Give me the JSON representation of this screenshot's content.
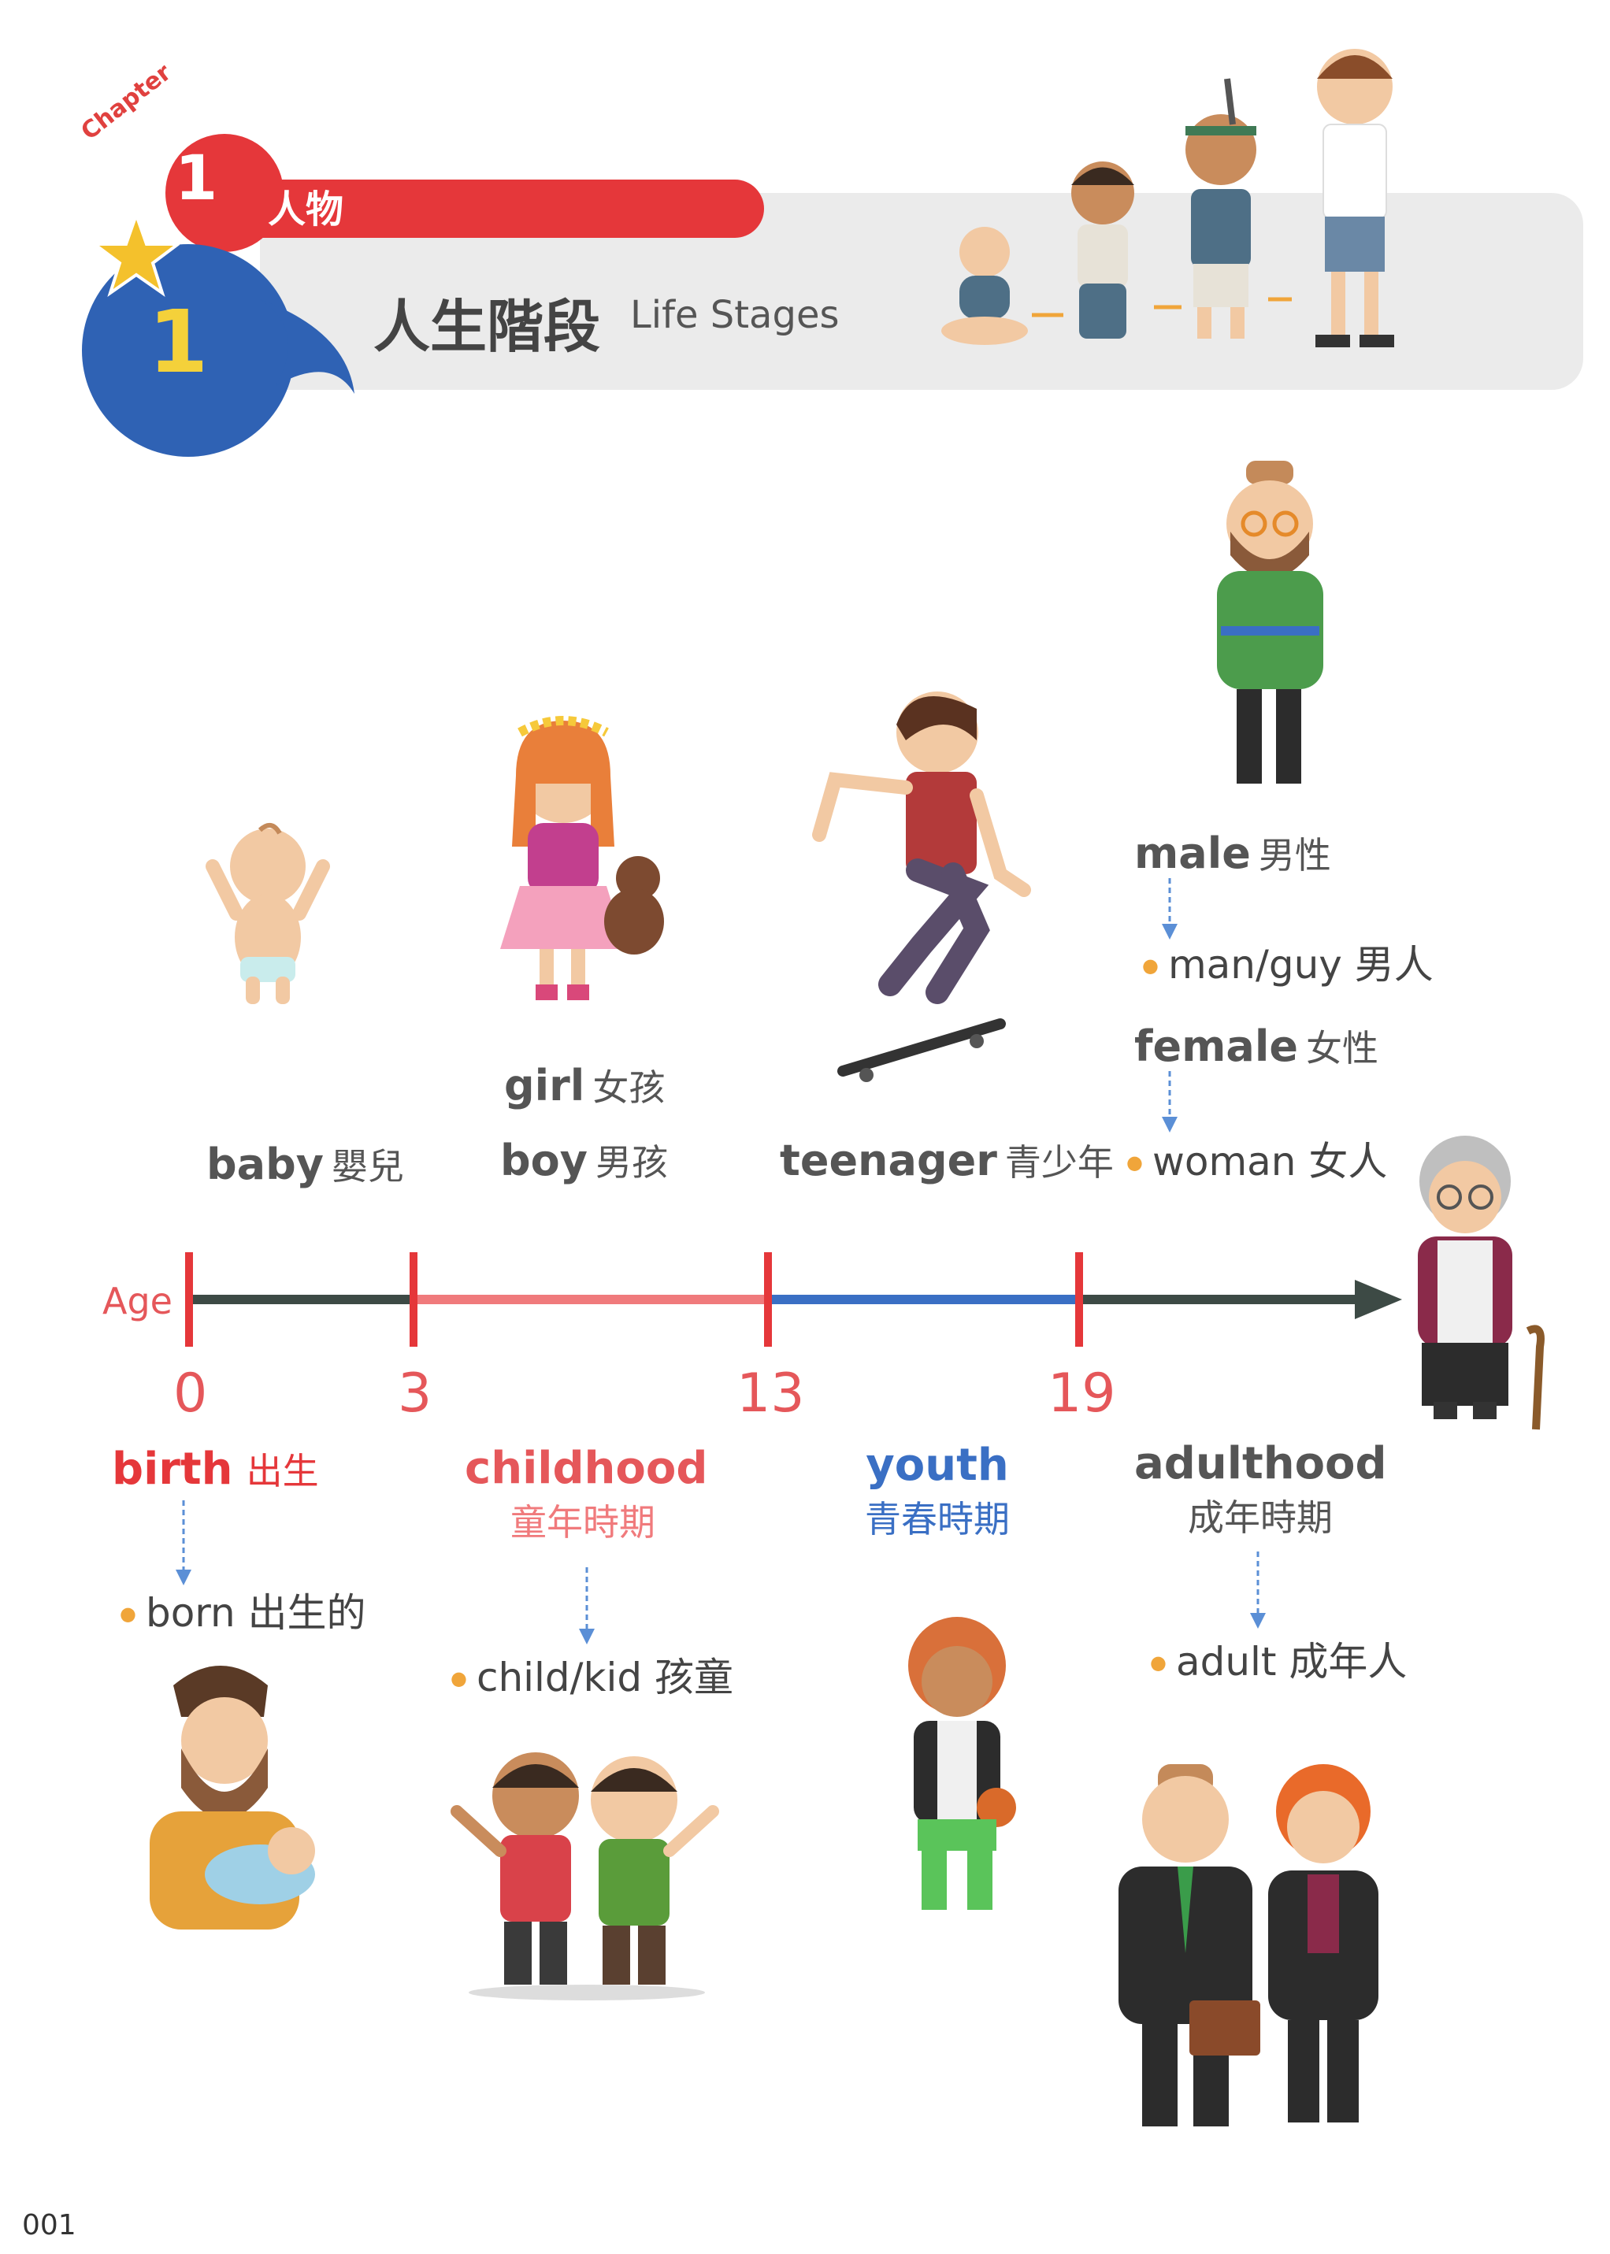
{
  "header": {
    "chapter_word": "Chapter",
    "chapter_number": "1",
    "chapter_title": "人物",
    "section_number": "1",
    "section_title_zh": "人生階段",
    "section_title_en": "Life Stages"
  },
  "timeline": {
    "axis_label": "Age",
    "ticks": [
      "0",
      "3",
      "13",
      "19"
    ]
  },
  "upper_words": {
    "baby": {
      "en": "baby",
      "zh": "嬰兒"
    },
    "girl": {
      "en": "girl",
      "zh": "女孩"
    },
    "boy": {
      "en": "boy",
      "zh": "男孩"
    },
    "teenager": {
      "en": "teenager",
      "zh": "青少年"
    },
    "male": {
      "en": "male",
      "zh": "男性"
    },
    "man": "man/guy 男人",
    "female": {
      "en": "female",
      "zh": "女性"
    },
    "woman": "woman  女人"
  },
  "stages": {
    "birth": {
      "en": "birth",
      "zh": "出生",
      "example": "born 出生的"
    },
    "childhood": {
      "en": "childhood",
      "zh": "童年時期",
      "example": "child/kid 孩童"
    },
    "youth": {
      "en": "youth",
      "zh": "青春時期"
    },
    "adulthood": {
      "en": "adulthood",
      "zh": "成年時期",
      "example": "adult 成年人"
    }
  },
  "colors": {
    "red": "#e5373a",
    "pink": "#f07a7c",
    "blue": "#3a6fc4",
    "dark": "#3d4a45",
    "grey": "#555555",
    "bullet": "#f0a53a",
    "arrow_blue": "#5b8fd6"
  },
  "page_number": "001"
}
